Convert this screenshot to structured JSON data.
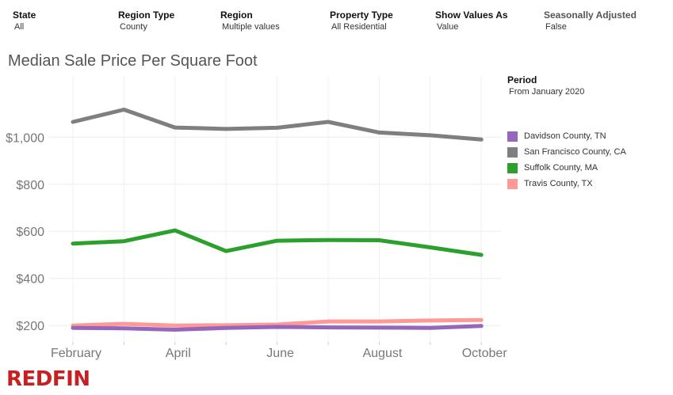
{
  "filters": [
    {
      "label": "State",
      "value": "All",
      "muted": false
    },
    {
      "label": "Region Type",
      "value": "County",
      "muted": false
    },
    {
      "label": "Region",
      "value": "Multiple values",
      "muted": false
    },
    {
      "label": "Property Type",
      "value": "All Residential",
      "muted": false
    },
    {
      "label": "Show Values As",
      "value": "Value",
      "muted": false
    },
    {
      "label": "Seasonally Adjusted",
      "value": "False",
      "muted": true
    }
  ],
  "legend": {
    "title": "Period",
    "subtitle": "From January 2020"
  },
  "logo": {
    "text": "REDFIN",
    "color": "#c82021"
  },
  "chart_data": {
    "type": "line",
    "title": "Median Sale Price Per Square Foot",
    "x": [
      "February",
      "March",
      "April",
      "May",
      "June",
      "July",
      "August",
      "September",
      "October"
    ],
    "x_tick_labels": [
      "February",
      "",
      "April",
      "",
      "June",
      "",
      "August",
      "",
      "October"
    ],
    "ylim": [
      130,
      1260
    ],
    "y_ticks": [
      200,
      400,
      600,
      800,
      1000
    ],
    "y_tick_labels": [
      "$200",
      "$400",
      "$600",
      "$800",
      "$1,000"
    ],
    "grid": true,
    "legend_position": "right",
    "series": [
      {
        "name": "Davidson County, TN",
        "color": "#9467bd",
        "values": [
          190,
          188,
          182,
          190,
          194,
          192,
          191,
          190,
          198
        ]
      },
      {
        "name": "San Francisco County, CA",
        "color": "#7f7f7f",
        "values": [
          1065,
          1117,
          1041,
          1035,
          1040,
          1065,
          1020,
          1008,
          990
        ]
      },
      {
        "name": "Suffolk County, MA",
        "color": "#2ca02c",
        "values": [
          548,
          558,
          604,
          516,
          560,
          563,
          562,
          532,
          500
        ]
      },
      {
        "name": "Travis County, TX",
        "color": "#ff9896",
        "values": [
          200,
          207,
          200,
          201,
          204,
          217,
          217,
          221,
          223
        ]
      }
    ]
  }
}
